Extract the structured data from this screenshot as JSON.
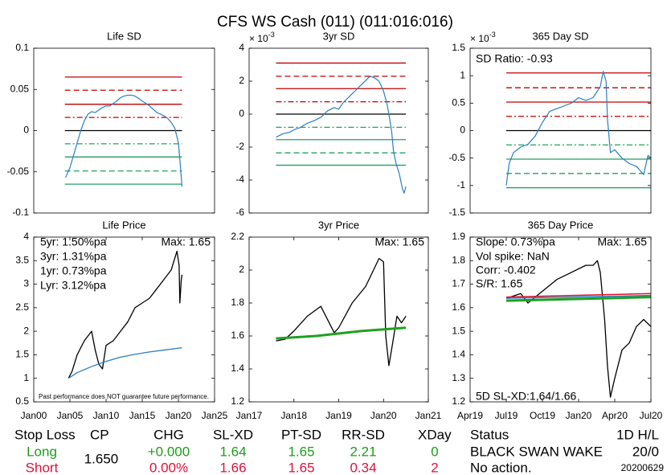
{
  "title": "CFS WS Cash (011) (011:016:016)",
  "chart_data": [
    {
      "type": "line",
      "title": "Life SD",
      "xlim": [
        2000,
        2025
      ],
      "ylim": [
        -0.1,
        0.1
      ],
      "yticks": [
        -0.1,
        -0.05,
        0,
        0.05,
        0.1
      ],
      "ref_x": [
        2004.3,
        2020.5
      ],
      "ref_lines": [
        {
          "value": 0.065,
          "color": "#c00000",
          "dash": "solid"
        },
        {
          "value": 0.049,
          "color": "#c00000",
          "dash": "dashed"
        },
        {
          "value": 0.032,
          "color": "#c00000",
          "dash": "solid"
        },
        {
          "value": 0.016,
          "color": "#c00000",
          "dash": "dashdot"
        },
        {
          "value": 0,
          "color": "#000000",
          "dash": "solid"
        },
        {
          "value": -0.016,
          "color": "#20a060",
          "dash": "dashdot"
        },
        {
          "value": -0.032,
          "color": "#20a060",
          "dash": "solid"
        },
        {
          "value": -0.049,
          "color": "#20a060",
          "dash": "dashed"
        },
        {
          "value": -0.065,
          "color": "#20a060",
          "dash": "solid"
        }
      ],
      "series": [
        {
          "color": "#2a7fc0",
          "width": 1.2,
          "x": [
            2004.4,
            2005,
            2005.5,
            2006,
            2006.5,
            2007,
            2007.5,
            2008,
            2008.5,
            2009,
            2009.5,
            2010,
            2010.5,
            2011,
            2011.5,
            2012,
            2012.5,
            2013,
            2013.5,
            2014,
            2014.5,
            2015,
            2015.5,
            2016,
            2016.5,
            2017,
            2017.5,
            2018,
            2018.5,
            2019,
            2019.5,
            2020,
            2020.2,
            2020.5
          ],
          "values": [
            -0.057,
            -0.045,
            -0.03,
            -0.015,
            0.0,
            0.012,
            0.02,
            0.023,
            0.022,
            0.025,
            0.028,
            0.03,
            0.03,
            0.033,
            0.036,
            0.04,
            0.042,
            0.043,
            0.043,
            0.042,
            0.039,
            0.036,
            0.033,
            0.03,
            0.026,
            0.022,
            0.02,
            0.018,
            0.015,
            0.01,
            0.003,
            -0.015,
            -0.035,
            -0.068
          ]
        }
      ],
      "annotations": []
    },
    {
      "type": "line",
      "title": "3yr SD",
      "xlim": [
        2017,
        2021
      ],
      "ylim": [
        -6,
        4
      ],
      "yticks": [
        -6,
        -4,
        -2,
        0,
        2,
        4
      ],
      "y_scale_label": "× 10",
      "y_scale_exponent": -3,
      "ref_x": [
        2017.6,
        2020.5
      ],
      "ref_lines": [
        {
          "value": 3.1,
          "color": "#c00000",
          "dash": "solid"
        },
        {
          "value": 2.3,
          "color": "#c00000",
          "dash": "dashed"
        },
        {
          "value": 1.55,
          "color": "#c00000",
          "dash": "solid"
        },
        {
          "value": 0.75,
          "color": "#c00000",
          "dash": "dashdot"
        },
        {
          "value": 0,
          "color": "#000000",
          "dash": "solid"
        },
        {
          "value": -0.8,
          "color": "#20a060",
          "dash": "dashdot"
        },
        {
          "value": -1.55,
          "color": "#20a060",
          "dash": "solid"
        },
        {
          "value": -2.35,
          "color": "#20a060",
          "dash": "dashed"
        },
        {
          "value": -3.1,
          "color": "#20a060",
          "dash": "solid"
        }
      ],
      "series": [
        {
          "color": "#2a7fc0",
          "width": 1.2,
          "x": [
            2017.6,
            2017.75,
            2017.9,
            2018.0,
            2018.15,
            2018.3,
            2018.45,
            2018.6,
            2018.75,
            2018.9,
            2019.0,
            2019.1,
            2019.25,
            2019.4,
            2019.55,
            2019.7,
            2019.8,
            2019.9,
            2020.0,
            2020.08,
            2020.12,
            2020.18,
            2020.22,
            2020.28,
            2020.35,
            2020.42,
            2020.46,
            2020.5
          ],
          "values": [
            -1.4,
            -1.2,
            -1.1,
            -0.95,
            -0.8,
            -0.55,
            -0.4,
            -0.2,
            0.2,
            0.4,
            0.3,
            0.7,
            1.1,
            1.5,
            1.9,
            2.3,
            2.2,
            2.0,
            1.4,
            0.6,
            0.0,
            -1.0,
            -2.2,
            -3.0,
            -3.6,
            -4.5,
            -4.8,
            -4.4
          ]
        }
      ],
      "annotations": []
    },
    {
      "type": "line",
      "title": "365 Day SD",
      "xlim": [
        2019.25,
        2020.5
      ],
      "ylim": [
        -1.5,
        1.5
      ],
      "yticks": [
        -1.5,
        -1,
        -0.5,
        0,
        0.5,
        1,
        1.5
      ],
      "y_scale_label": "× 10",
      "y_scale_exponent": -3,
      "ref_x": [
        2019.5,
        2020.5
      ],
      "ref_lines": [
        {
          "value": 1.05,
          "color": "#c00000",
          "dash": "solid"
        },
        {
          "value": 0.78,
          "color": "#c00000",
          "dash": "dashed"
        },
        {
          "value": 0.52,
          "color": "#c00000",
          "dash": "solid"
        },
        {
          "value": 0.26,
          "color": "#c00000",
          "dash": "dashdot"
        },
        {
          "value": 0,
          "color": "#000000",
          "dash": "solid"
        },
        {
          "value": -0.26,
          "color": "#20a060",
          "dash": "dashdot"
        },
        {
          "value": -0.52,
          "color": "#20a060",
          "dash": "solid"
        },
        {
          "value": -0.78,
          "color": "#20a060",
          "dash": "dashed"
        },
        {
          "value": -1.04,
          "color": "#20a060",
          "dash": "solid"
        }
      ],
      "series": [
        {
          "color": "#2a7fc0",
          "width": 1.2,
          "x": [
            2019.5,
            2019.52,
            2019.55,
            2019.6,
            2019.65,
            2019.7,
            2019.75,
            2019.8,
            2019.85,
            2019.9,
            2019.95,
            2020.0,
            2020.05,
            2020.1,
            2020.15,
            2020.17,
            2020.19,
            2020.2,
            2020.22,
            2020.25,
            2020.3,
            2020.35,
            2020.4,
            2020.45,
            2020.48,
            2020.5
          ],
          "values": [
            -1.0,
            -0.6,
            -0.4,
            -0.3,
            -0.25,
            -0.1,
            0.15,
            0.35,
            0.4,
            0.45,
            0.5,
            0.6,
            0.55,
            0.6,
            0.8,
            1.08,
            0.9,
            0.2,
            -0.4,
            -0.35,
            -0.5,
            -0.6,
            -0.65,
            -0.8,
            -0.45,
            -0.5
          ]
        }
      ],
      "annotations": [
        "SD Ratio: -0.93"
      ]
    },
    {
      "type": "line",
      "title": "Life Price",
      "xlim": [
        2000,
        2025
      ],
      "ylim": [
        0.5,
        4
      ],
      "yticks": [
        0.5,
        1,
        1.5,
        2,
        2.5,
        3,
        3.5,
        4
      ],
      "xticks": [
        {
          "value": 2000,
          "label": "Jan00"
        },
        {
          "value": 2005,
          "label": "Jan05"
        },
        {
          "value": 2010,
          "label": "Jan10"
        },
        {
          "value": 2015,
          "label": "Jan15"
        },
        {
          "value": 2020,
          "label": "Jan20"
        },
        {
          "value": 2025,
          "label": "Jan25"
        }
      ],
      "series": [
        {
          "color": "#000000",
          "width": 1.3,
          "x": [
            2004.8,
            2005.3,
            2006,
            2007,
            2008,
            2008.5,
            2009,
            2009.5,
            2010,
            2011,
            2012,
            2013,
            2014,
            2015,
            2016,
            2017,
            2018,
            2019,
            2019.8,
            2020.1,
            2020.2,
            2020.4,
            2020.5
          ],
          "values": [
            1.0,
            1.15,
            1.5,
            1.8,
            2.0,
            1.6,
            1.3,
            1.2,
            1.7,
            1.8,
            2.0,
            2.2,
            2.5,
            2.6,
            2.7,
            2.9,
            3.1,
            3.3,
            3.7,
            3.4,
            2.6,
            3.1,
            3.2
          ]
        },
        {
          "color": "#2a7fc0",
          "width": 1.3,
          "x": [
            2004.8,
            2006,
            2008,
            2010,
            2012,
            2014,
            2016,
            2018,
            2020.5
          ],
          "values": [
            1.0,
            1.12,
            1.25,
            1.36,
            1.45,
            1.51,
            1.56,
            1.6,
            1.65
          ]
        }
      ],
      "annotations": [
        "5yr: 1.50%pa",
        "3yr: 1.31%pa",
        "1yr: 0.73%pa",
        "Lyr: 3.12%pa",
        "Max: 1.65",
        "Past performance does NOT guarantee future performance."
      ]
    },
    {
      "type": "line",
      "title": "3yr Price",
      "xlim": [
        2017,
        2021
      ],
      "ylim": [
        1.2,
        2.2
      ],
      "yticks": [
        1.2,
        1.4,
        1.6,
        1.8,
        2,
        2.2
      ],
      "xticks": [
        {
          "value": 2017,
          "label": "Jan17"
        },
        {
          "value": 2018,
          "label": "Jan18"
        },
        {
          "value": 2019,
          "label": "Jan19"
        },
        {
          "value": 2020,
          "label": "Jan20"
        },
        {
          "value": 2021,
          "label": "Jan21"
        }
      ],
      "series": [
        {
          "color": "#000000",
          "width": 1.3,
          "x": [
            2017.6,
            2017.8,
            2018,
            2018.3,
            2018.6,
            2018.9,
            2019.0,
            2019.3,
            2019.6,
            2019.9,
            2020.0,
            2020.05,
            2020.12,
            2020.2,
            2020.3,
            2020.4,
            2020.5
          ],
          "values": [
            1.57,
            1.58,
            1.63,
            1.72,
            1.78,
            1.62,
            1.65,
            1.8,
            1.9,
            2.07,
            2.05,
            1.6,
            1.42,
            1.55,
            1.72,
            1.68,
            1.72
          ]
        },
        {
          "color": "#20a020",
          "width": 3,
          "x": [
            2017.6,
            2018.5,
            2019.5,
            2020.5
          ],
          "values": [
            1.585,
            1.6,
            1.63,
            1.65
          ]
        }
      ],
      "annotations": [
        "Max: 1.65"
      ]
    },
    {
      "type": "line",
      "title": "365 Day Price",
      "xlim": [
        2019.25,
        2020.5
      ],
      "ylim": [
        1.2,
        1.9
      ],
      "yticks": [
        1.2,
        1.3,
        1.4,
        1.5,
        1.6,
        1.7,
        1.8,
        1.9
      ],
      "xticks": [
        {
          "value": 2019.25,
          "label": "Apr19"
        },
        {
          "value": 2019.5,
          "label": "Jul19"
        },
        {
          "value": 2019.75,
          "label": "Oct19"
        },
        {
          "value": 2020,
          "label": "Jan20"
        },
        {
          "value": 2020.25,
          "label": "Apr20"
        },
        {
          "value": 2020.5,
          "label": "Jul20"
        }
      ],
      "series": [
        {
          "color": "#000000",
          "width": 1.3,
          "x": [
            2019.5,
            2019.6,
            2019.65,
            2019.75,
            2019.85,
            2019.95,
            2020.05,
            2020.1,
            2020.13,
            2020.15,
            2020.18,
            2020.2,
            2020.22,
            2020.25,
            2020.3,
            2020.35,
            2020.4,
            2020.45,
            2020.5
          ],
          "values": [
            1.64,
            1.66,
            1.62,
            1.67,
            1.72,
            1.75,
            1.78,
            1.78,
            1.8,
            1.75,
            1.55,
            1.35,
            1.22,
            1.3,
            1.42,
            1.45,
            1.52,
            1.55,
            1.52
          ]
        },
        {
          "color": "#e01030",
          "width": 1.5,
          "x": [
            2019.5,
            2020.5
          ],
          "values": [
            1.645,
            1.66
          ]
        },
        {
          "color": "#2a7fc0",
          "width": 1.5,
          "x": [
            2019.5,
            2020.5
          ],
          "values": [
            1.64,
            1.652
          ]
        },
        {
          "color": "#20a020",
          "width": 3,
          "x": [
            2019.5,
            2020.5
          ],
          "values": [
            1.63,
            1.645
          ]
        }
      ],
      "annotations": [
        "Slope: 0.73%pa",
        "Max: 1.65",
        "Vol spike: NaN",
        "Corr: -0.402",
        "S/R: 1.65",
        "5D SL-XD:1,64/1.66"
      ]
    }
  ],
  "table": {
    "headers": [
      "Stop Loss",
      "CP",
      "CHG",
      "SL-XD",
      "PT-SD",
      "RR-SD",
      "XDay",
      "Status",
      "1D H/L"
    ],
    "cp": "1.650",
    "rows": [
      [
        "Long",
        "+0.000",
        "1.64",
        "1.65",
        "2.21",
        "0",
        "BLACK SWAN WAKE",
        "20/0"
      ],
      [
        "Short",
        "0.00%",
        "1.66",
        "1.65",
        "0.34",
        "2",
        "No action.",
        "20200629"
      ]
    ]
  }
}
